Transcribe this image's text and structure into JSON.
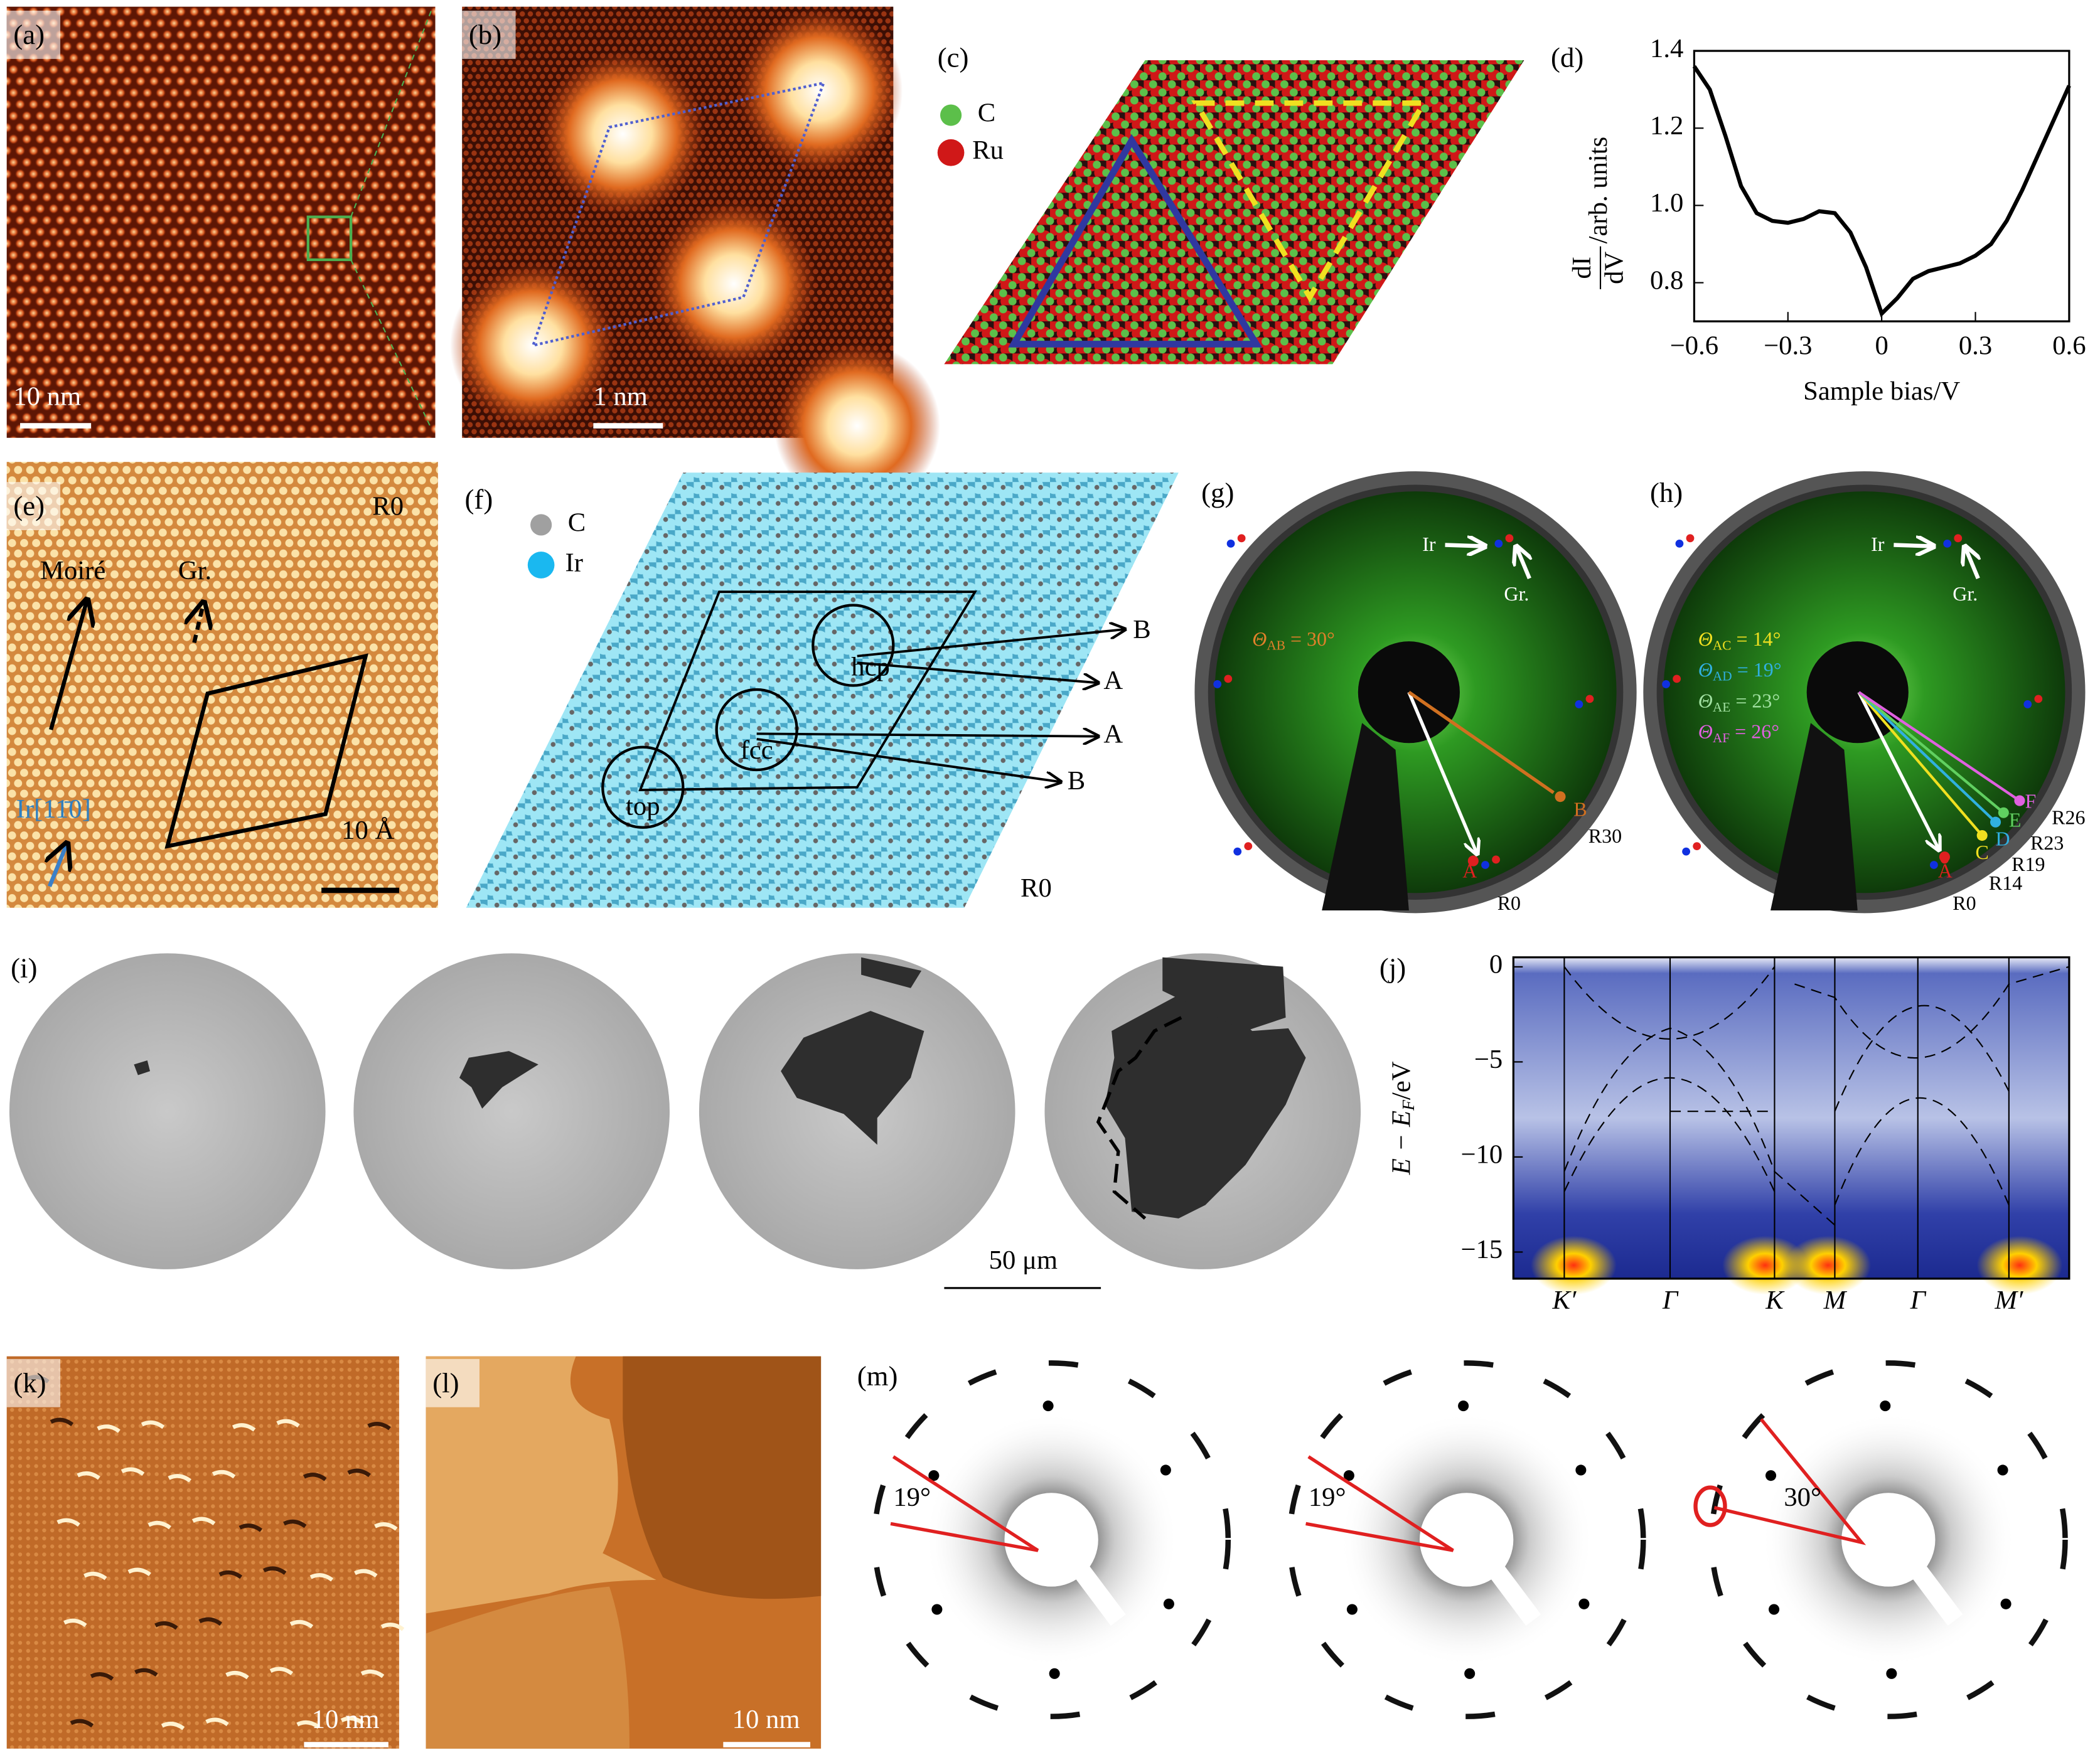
{
  "panels": {
    "a": {
      "label": "(a)",
      "scale": "10 nm"
    },
    "b": {
      "label": "(b)",
      "scale": "1 nm"
    },
    "c": {
      "label": "(c)",
      "legend": [
        "C",
        "Ru"
      ]
    },
    "d": {
      "label": "(d)",
      "chart": {
        "type": "line",
        "color": "#000000",
        "x": [
          -0.6,
          -0.55,
          -0.5,
          -0.45,
          -0.4,
          -0.35,
          -0.3,
          -0.25,
          -0.2,
          -0.15,
          -0.1,
          -0.05,
          0,
          0.05,
          0.1,
          0.15,
          0.2,
          0.25,
          0.3,
          0.35,
          0.4,
          0.45,
          0.5,
          0.55,
          0.6
        ],
        "values": [
          1.36,
          1.3,
          1.18,
          1.05,
          0.98,
          0.96,
          0.955,
          0.965,
          0.985,
          0.98,
          0.93,
          0.84,
          0.72,
          0.76,
          0.81,
          0.83,
          0.84,
          0.85,
          0.87,
          0.9,
          0.96,
          1.04,
          1.13,
          1.22,
          1.31
        ],
        "xlim": [
          -0.6,
          0.6
        ],
        "ylim": [
          0.7,
          1.4
        ],
        "xticks": [
          {
            "value": -0.6,
            "label": "−0.6"
          },
          {
            "value": -0.3,
            "label": "−0.3"
          },
          0,
          0.3,
          0.6
        ],
        "yticks": [
          0.8,
          {
            "value": 1,
            "label": "1.0"
          },
          1.2,
          1.4
        ],
        "xlabel": "Sample bias/V",
        "ylabel": {
          "num": "dI",
          "den": "dV",
          "rest": "/arb. units"
        }
      }
    },
    "e": {
      "label": "(e)",
      "corner": "R0",
      "arrows": [
        "Moiré",
        "Gr."
      ],
      "direction": "Ir[11̄0]",
      "scale": "10 Å"
    },
    "f": {
      "label": "(f)",
      "legend": [
        "C",
        "Ir"
      ],
      "sites": [
        "top",
        "fcc",
        "hcp"
      ],
      "ends": [
        "B",
        "A",
        "A",
        "B"
      ],
      "corner": "R0"
    },
    "g": {
      "label": "(g)",
      "ir": "Ir",
      "gr": "Gr.",
      "angles": [
        {
          "sym": "Θ",
          "sub": "AB",
          "rest": " = 30°"
        }
      ],
      "spots": [
        "A",
        "B"
      ],
      "rotations": [
        "R0",
        "R30"
      ]
    },
    "h": {
      "label": "(h)",
      "ir": "Ir",
      "gr": "Gr.",
      "angles": [
        {
          "sym": "Θ",
          "sub": "AC",
          "rest": " = 14°"
        },
        {
          "sym": "Θ",
          "sub": "AD",
          "rest": " = 19°"
        },
        {
          "sym": "Θ",
          "sub": "AE",
          "rest": " = 23°"
        },
        {
          "sym": "Θ",
          "sub": "AF",
          "rest": " = 26°"
        }
      ],
      "spots": [
        "A",
        "C",
        "D",
        "E",
        "F"
      ],
      "rotations": [
        "R0",
        "R14",
        "R19",
        "R23",
        "R26"
      ]
    },
    "i": {
      "label": "(i)",
      "scale": "50 μm"
    },
    "j": {
      "label": "(j)",
      "chart": {
        "type": "band",
        "categories": [
          "K′",
          "Γ",
          "K",
          "M",
          "Γ",
          "M′"
        ],
        "ylim": [
          -16.4,
          0.5
        ],
        "yticks": [
          0,
          {
            "value": -5,
            "label": "−5"
          },
          {
            "value": -10,
            "label": "−10"
          },
          {
            "value": -15,
            "label": "−15"
          }
        ],
        "ylabel": {
          "main": "E − E",
          "sub": "F",
          "rest": "/eV"
        }
      }
    },
    "k": {
      "label": "(k)",
      "scale": "10 nm"
    },
    "l": {
      "label": "(l)",
      "scale": "10 nm"
    },
    "m": {
      "label": "(m)",
      "angles": [
        "19°",
        "19°",
        "30°"
      ]
    }
  }
}
